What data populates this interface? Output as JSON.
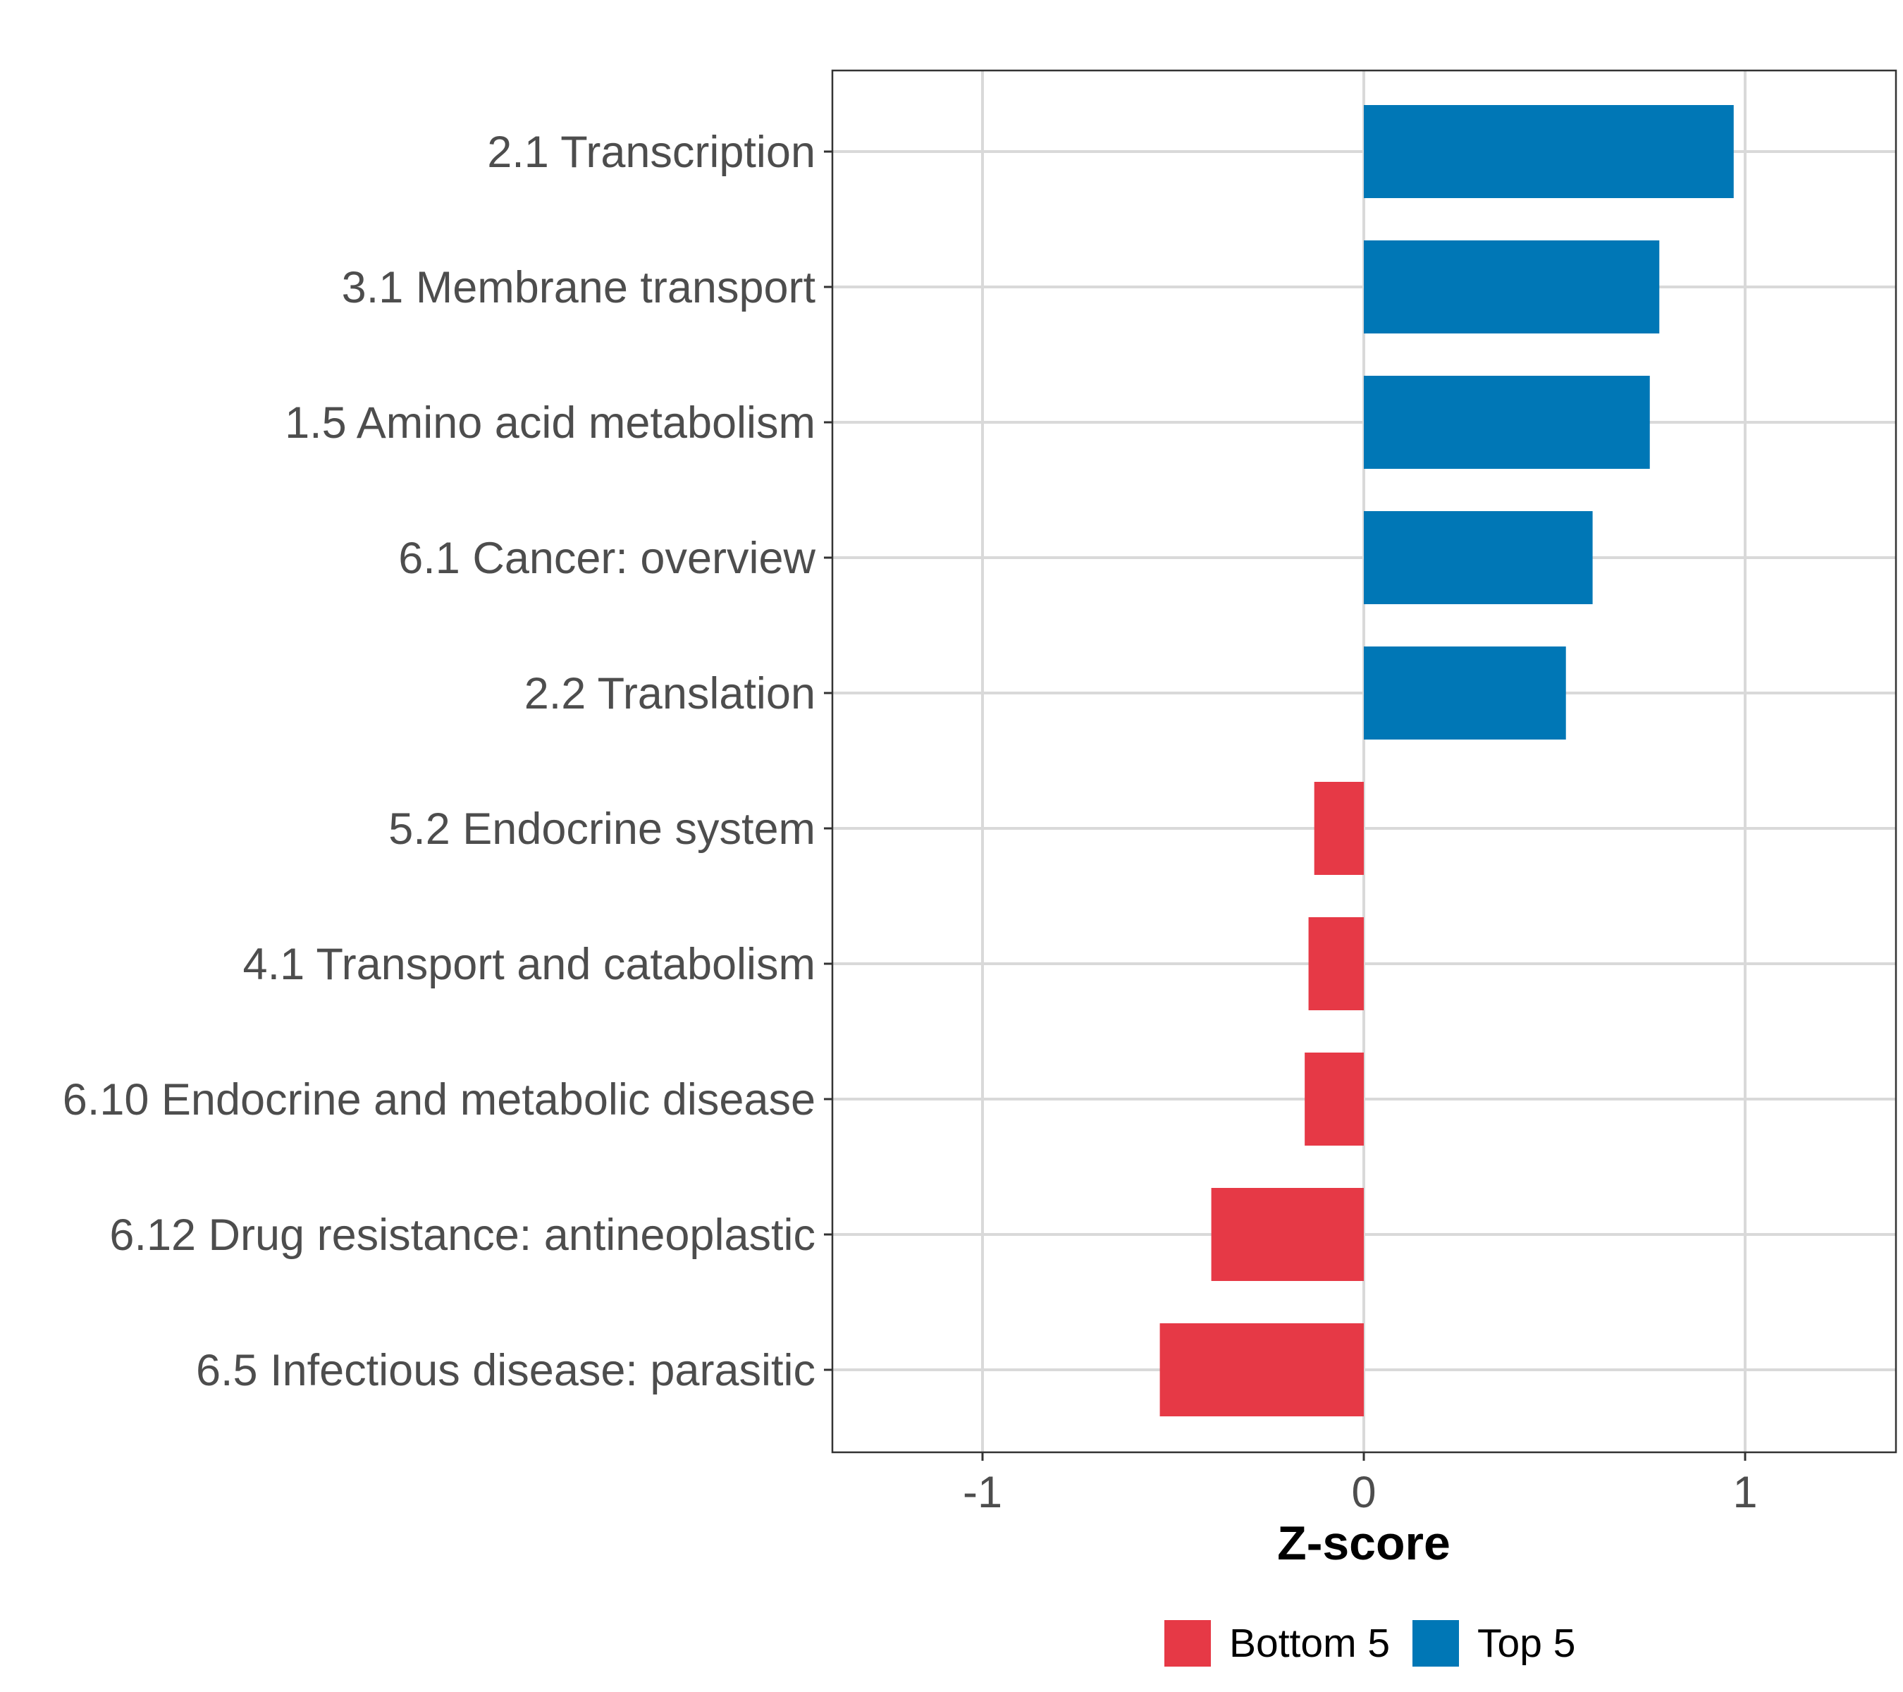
{
  "chart_data": {
    "type": "bar",
    "orientation": "horizontal",
    "categories": [
      "2.1 Transcription",
      "3.1 Membrane transport",
      "1.5 Amino acid metabolism",
      "6.1 Cancer: overview",
      "2.2 Translation",
      "5.2 Endocrine system",
      "4.1 Transport and catabolism",
      "6.10 Endocrine and metabolic disease",
      "6.12 Drug resistance: antineoplastic",
      "6.5 Infectious disease: parasitic"
    ],
    "values": [
      0.97,
      0.775,
      0.75,
      0.6,
      0.53,
      -0.13,
      -0.145,
      -0.155,
      -0.4,
      -0.535
    ],
    "groups": [
      "Top 5",
      "Top 5",
      "Top 5",
      "Top 5",
      "Top 5",
      "Bottom 5",
      "Bottom 5",
      "Bottom 5",
      "Bottom 5",
      "Bottom 5"
    ],
    "title": "",
    "xlabel": "Z-score",
    "ylabel": "",
    "xlim": [
      -1.4,
      1.4
    ],
    "xticks": [
      -1,
      0,
      1
    ],
    "xtick_labels": [
      "-1",
      "0",
      "1"
    ],
    "grid": true,
    "legend": {
      "position": "bottom",
      "entries": [
        {
          "label": "Bottom 5",
          "color": "#e63946"
        },
        {
          "label": "Top 5",
          "color": "#0077b6"
        }
      ]
    },
    "colors": {
      "Top 5": "#0077b6",
      "Bottom 5": "#e63946"
    }
  }
}
